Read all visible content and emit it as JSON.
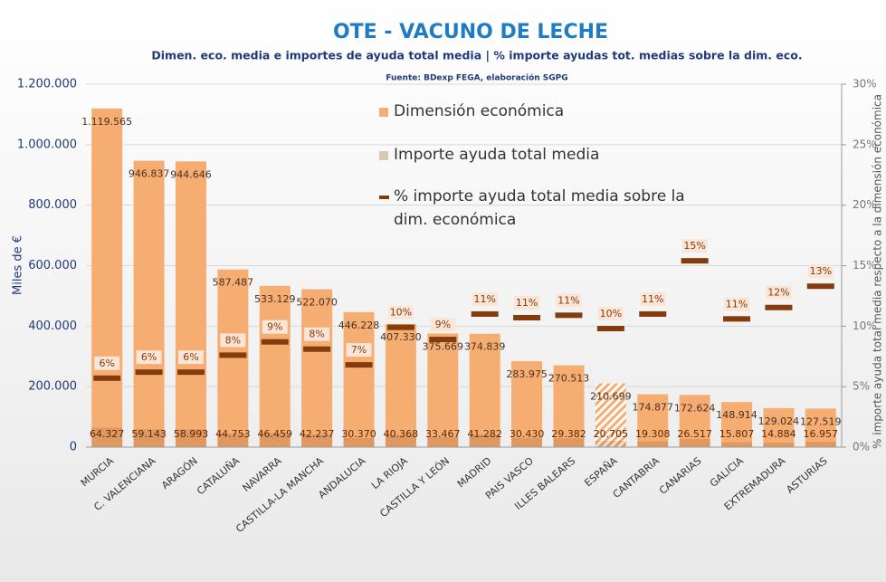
{
  "chart_data": {
    "type": "bar",
    "title": "OTE - VACUNO DE LECHE",
    "subtitle": "Dimen. eco. media e importes de ayuda total media | % importe ayudas tot. medias sobre la dim. eco.",
    "source": "Fuente: BDexp FEGA, elaboración SGPG",
    "ylabel": "Miles de €",
    "y2label": "% importe ayuda total media respecto a la dimensión económica",
    "categories": [
      "MURCIA",
      "C. VALENCIANA",
      "ARAGÓN",
      "CATALUÑA",
      "NAVARRA",
      "CASTILLA-LA MANCHA",
      "ANDALUCIA",
      "LA RIOJA",
      "CASTILLA Y LEÓN",
      "MADRID",
      "PAIS VASCO",
      "ILLES BALEARS",
      "ESPAÑA",
      "CANTABRIA",
      "CANARIAS",
      "GALICIA",
      "EXTREMADURA",
      "ASTURIAS"
    ],
    "hatched_index": 12,
    "series": [
      {
        "name": "Dimensión económica",
        "color": "#f5ad72",
        "values": [
          1119565,
          946837,
          944646,
          587487,
          533129,
          522070,
          446228,
          407330,
          375669,
          374839,
          283975,
          270513,
          210699,
          174877,
          172624,
          148914,
          129024,
          127519
        ],
        "value_labels": [
          "1.119.565",
          "946.837",
          "944.646",
          "587.487",
          "533.129",
          "522.070",
          "446.228",
          "407.330",
          "375.669",
          "374.839",
          "283.975",
          "270.513",
          "210.699",
          "174.877",
          "172.624",
          "148.914",
          "129.024",
          "127.519"
        ]
      },
      {
        "name": "Importe ayuda total media",
        "color": "#d9c7b8",
        "values": [
          64327,
          59143,
          58993,
          44753,
          46459,
          42237,
          30370,
          40368,
          33467,
          41282,
          30430,
          29382,
          20705,
          19308,
          26517,
          15807,
          14884,
          16957
        ],
        "value_labels": [
          "64.327",
          "59.143",
          "58.993",
          "44.753",
          "46.459",
          "42.237",
          "30.370",
          "40.368",
          "33.467",
          "41.282",
          "30.430",
          "29.382",
          "20.705",
          "19.308",
          "26.517",
          "15.807",
          "14.884",
          "16.957"
        ]
      },
      {
        "name": "% importe ayuda total media sobre la dim. económica",
        "color": "#843c0c",
        "axis": "y2",
        "values": [
          5.7,
          6.2,
          6.2,
          7.6,
          8.7,
          8.1,
          6.8,
          9.9,
          8.9,
          11.0,
          10.7,
          10.9,
          9.8,
          11.0,
          15.4,
          10.6,
          11.54,
          13.3
        ],
        "value_labels": [
          "6%",
          "6%",
          "6%",
          "8%",
          "9%",
          "8%",
          "7%",
          "10%",
          "9%",
          "11%",
          "11%",
          "11%",
          "10%",
          "11%",
          "15%",
          "11%",
          "12%",
          "13%"
        ]
      }
    ],
    "ylim": [
      0,
      1200000
    ],
    "yticks": [
      0,
      {
        "value": 200000,
        "label": "200.000"
      },
      {
        "value": 400000,
        "label": "400.000"
      },
      {
        "value": 600000,
        "label": "600.000"
      },
      {
        "value": 800000,
        "label": "800.000"
      },
      {
        "value": 1000000,
        "label": "1.000.000"
      },
      {
        "value": 1200000,
        "label": "1.200.000"
      }
    ],
    "y2lim": [
      0,
      30
    ],
    "y2ticks": [
      {
        "value": 0,
        "label": "0%"
      },
      {
        "value": 5,
        "label": "5%"
      },
      {
        "value": 10,
        "label": "10%"
      },
      {
        "value": 15,
        "label": "15%"
      },
      {
        "value": 20,
        "label": "20%"
      },
      {
        "value": 25,
        "label": "25%"
      },
      {
        "value": 30,
        "label": "30%"
      }
    ],
    "grid": true
  }
}
